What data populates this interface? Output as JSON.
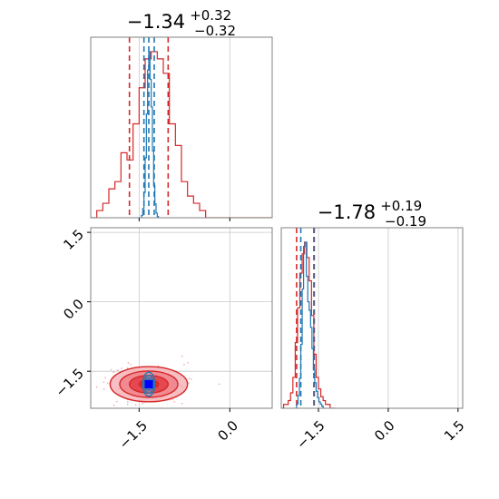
{
  "chart_data": {
    "type": "corner",
    "panels": [
      {
        "id": "p1-marginal",
        "kind": "histogram",
        "title": {
          "value": "−1.34",
          "plus": "+0.32",
          "minus": "−0.32"
        },
        "xlim": [
          -2.3,
          0.7
        ],
        "grid": true,
        "series": [
          {
            "color": "#d62728",
            "bins": [
              -2.3,
              -2.2,
              -2.1,
              -2.0,
              -1.9,
              -1.8,
              -1.7,
              -1.6,
              -1.5,
              -1.4,
              -1.3,
              -1.2,
              -1.1,
              -1.0,
              -0.9,
              -0.8,
              -0.7,
              -0.6,
              -0.5,
              -0.4,
              -0.3,
              -0.2,
              -0.1,
              0.0,
              0.1,
              0.2,
              0.3,
              0.4,
              0.5,
              0.6,
              0.7
            ],
            "counts": [
              0,
              1,
              2,
              4,
              5,
              9,
              8,
              13,
              18,
              22,
              23,
              22,
              20,
              13,
              10,
              5,
              3,
              2,
              1,
              0,
              0,
              0,
              0,
              0,
              0,
              0,
              0,
              0,
              0,
              0
            ],
            "quantiles": [
              -1.66,
              -1.02
            ]
          },
          {
            "color": "#1f77b4",
            "bins": [
              -1.46,
              -1.44,
              -1.42,
              -1.4,
              -1.38,
              -1.36,
              -1.34,
              -1.32,
              -1.3,
              -1.28,
              -1.26,
              -1.24,
              -1.22,
              -1.2,
              -1.18
            ],
            "counts": [
              2,
              8,
              22,
              52,
              90,
              128,
              144,
              120,
              96,
              58,
              28,
              12,
              4,
              1
            ],
            "quantiles": [
              -1.42,
              -1.34,
              -1.25
            ]
          }
        ]
      },
      {
        "id": "p2-marginal",
        "kind": "histogram",
        "title": {
          "value": "−1.78",
          "plus": "+0.19",
          "minus": "−0.19"
        },
        "xlim": [
          -2.3,
          1.6
        ],
        "grid": true,
        "series": [
          {
            "color": "#d62728",
            "bins": [
              -2.3,
              -2.25,
              -2.2,
              -2.15,
              -2.1,
              -2.05,
              -2.0,
              -1.95,
              -1.9,
              -1.85,
              -1.8,
              -1.75,
              -1.7,
              -1.65,
              -1.6,
              -1.55,
              -1.5,
              -1.45,
              -1.4,
              -1.35,
              -1.3,
              -1.25,
              -1.2,
              -1.15
            ],
            "counts": [
              0,
              1,
              1,
              2,
              4,
              8,
              17,
              26,
              35,
              40,
              43,
              39,
              33,
              24,
              14,
              8,
              5,
              3,
              2,
              1,
              1,
              0,
              0
            ],
            "quantiles": [
              -1.97,
              -1.59
            ]
          },
          {
            "color": "#1f77b4",
            "bins": [
              -2.0,
              -1.97,
              -1.94,
              -1.91,
              -1.88,
              -1.85,
              -1.82,
              -1.79,
              -1.76,
              -1.73,
              -1.7,
              -1.67,
              -1.64,
              -1.61,
              -1.58,
              -1.55,
              -1.52,
              -1.49,
              -1.46,
              -1.43,
              -1.4,
              -1.37
            ],
            "counts": [
              0,
              2,
              6,
              14,
              30,
              56,
              76,
              78,
              62,
              50,
              46,
              38,
              28,
              18,
              12,
              8,
              5,
              3,
              2,
              1,
              0
            ],
            "quantiles": [
              -1.88,
              -1.6
            ]
          }
        ]
      },
      {
        "id": "p21-joint",
        "kind": "2d-density",
        "xlim": [
          -2.3,
          0.7
        ],
        "ylim": [
          -2.3,
          1.6
        ],
        "grid": true,
        "contours": [
          {
            "color": "#d62728",
            "center": [
              -1.34,
              -1.78
            ],
            "sigma": [
              0.32,
              0.19
            ],
            "levels": [
              0.5,
              1.0,
              1.5,
              2.0
            ]
          },
          {
            "color": "#1f77b4",
            "center": [
              -1.34,
              -1.78
            ],
            "sigma": [
              0.05,
              0.13
            ],
            "levels": [
              0.5,
              1.0,
              1.5,
              2.0
            ]
          }
        ],
        "truth": {
          "x": -1.34,
          "y": -1.78,
          "color": "#0000ff"
        }
      }
    ],
    "ticks": {
      "p21_y": [
        {
          "value": 1.5,
          "label": "1.5"
        },
        {
          "value": 0.0,
          "label": "0.0"
        },
        {
          "value": -1.5,
          "label": "−1.5"
        }
      ],
      "p21_x": [
        {
          "value": -1.5,
          "label": "−1.5"
        },
        {
          "value": 0.0,
          "label": "0.0"
        }
      ],
      "p2_x": [
        {
          "value": -1.5,
          "label": "−1.5"
        },
        {
          "value": 0.0,
          "label": "0.0"
        },
        {
          "value": 1.5,
          "label": "1.5"
        }
      ]
    }
  }
}
